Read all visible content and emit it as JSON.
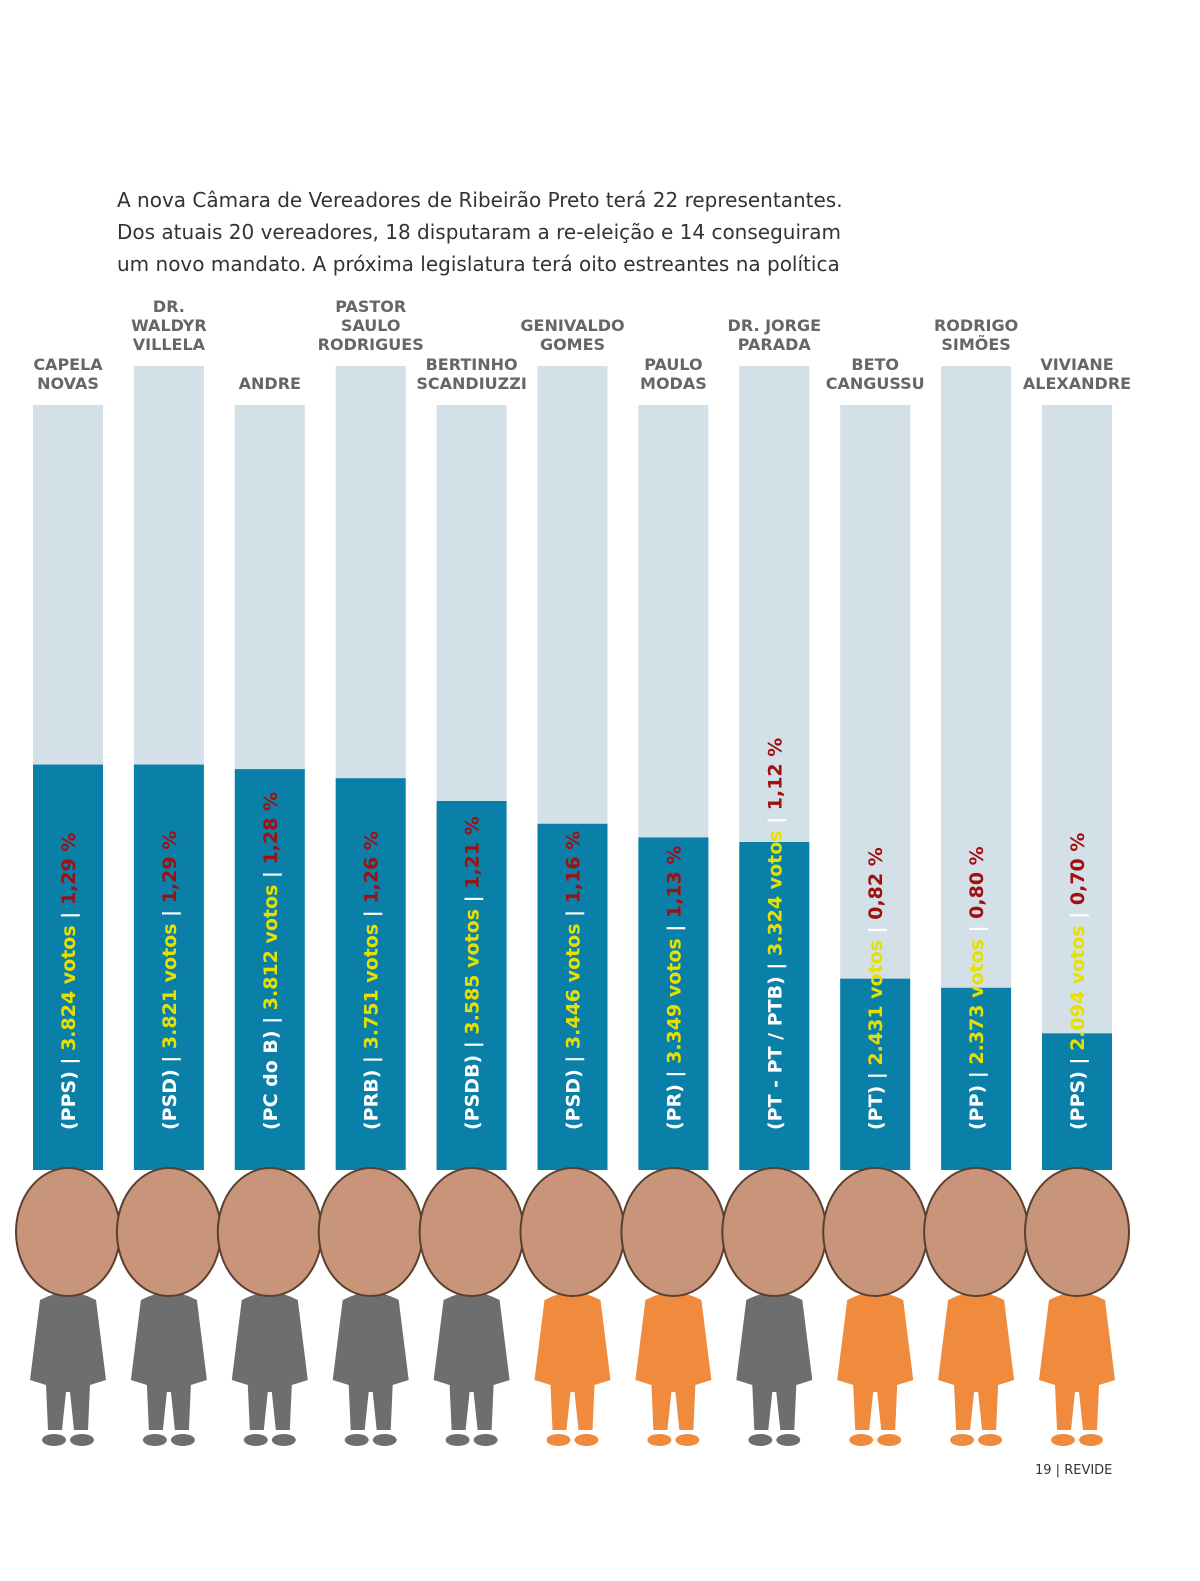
{
  "chart_data": {
    "type": "bar",
    "intro": [
      "A nova Câmara de Vereadores de Ribeirão Preto terá 22 representantes.",
      "Dos atuais 20 vereadores, 18 disputaram a re-eleição e 14 conseguiram",
      "um novo mandato. A próxima legislatura terá oito estreantes na política"
    ],
    "categories": [
      [
        "CAPELA",
        "NOVAS"
      ],
      [
        "DR.",
        "WALDYR",
        "VILLELA"
      ],
      [
        "ANDRE"
      ],
      [
        "PASTOR",
        "SAULO",
        "RODRIGUES"
      ],
      [
        "BERTINHO",
        "SCANDIUZZI"
      ],
      [
        "GENIVALDO",
        "GOMES"
      ],
      [
        "PAULO",
        "MODAS"
      ],
      [
        "DR. JORGE",
        "PARADA"
      ],
      [
        "BETO",
        "CANGUSSU"
      ],
      [
        "RODRIGO",
        "SIMÕES"
      ],
      [
        "VIVIANE",
        "ALEXANDRE"
      ]
    ],
    "parties": [
      "(PPS)",
      "(PSD)",
      "(PC do B)",
      "(PRB)",
      "(PSDB)",
      "(PSD)",
      "(PR)",
      "(PT - PT / PTB)",
      "(PT)",
      "(PP)",
      "(PPS)"
    ],
    "votes": [
      3824,
      3821,
      3812,
      3751,
      3585,
      3446,
      3349,
      3324,
      2431,
      2373,
      2094
    ],
    "votes_labels": [
      "3.824 votos",
      "3.821 votos",
      "3.812 votos",
      "3.751 votos",
      "3.585 votos",
      "3.446 votos",
      "3.349 votos",
      "3.324 votos",
      "2.431 votos",
      "2.373 votos",
      "2.094 votos"
    ],
    "values": [
      1.29,
      1.29,
      1.28,
      1.26,
      1.21,
      1.16,
      1.13,
      1.12,
      0.82,
      0.8,
      0.7
    ],
    "value_labels": [
      "1,29 %",
      "1,29 %",
      "1,28 %",
      "1,26 %",
      "1,21 %",
      "1,16 %",
      "1,13 %",
      "1,12 %",
      "0,82 %",
      "0,80 %",
      "0,70 %"
    ],
    "ylim": [
      0.4,
      1.3
    ],
    "color": "#0a80a8",
    "background_color": "#d3e0e8",
    "figure_colors": [
      "#6e6e6e",
      "#6e6e6e",
      "#6e6e6e",
      "#6e6e6e",
      "#6e6e6e",
      "#f08a3c",
      "#f08a3c",
      "#6e6e6e",
      "#f08a3c",
      "#f08a3c",
      "#f08a3c"
    ]
  },
  "footer": {
    "page": "19",
    "magazine": "REVIDE"
  }
}
